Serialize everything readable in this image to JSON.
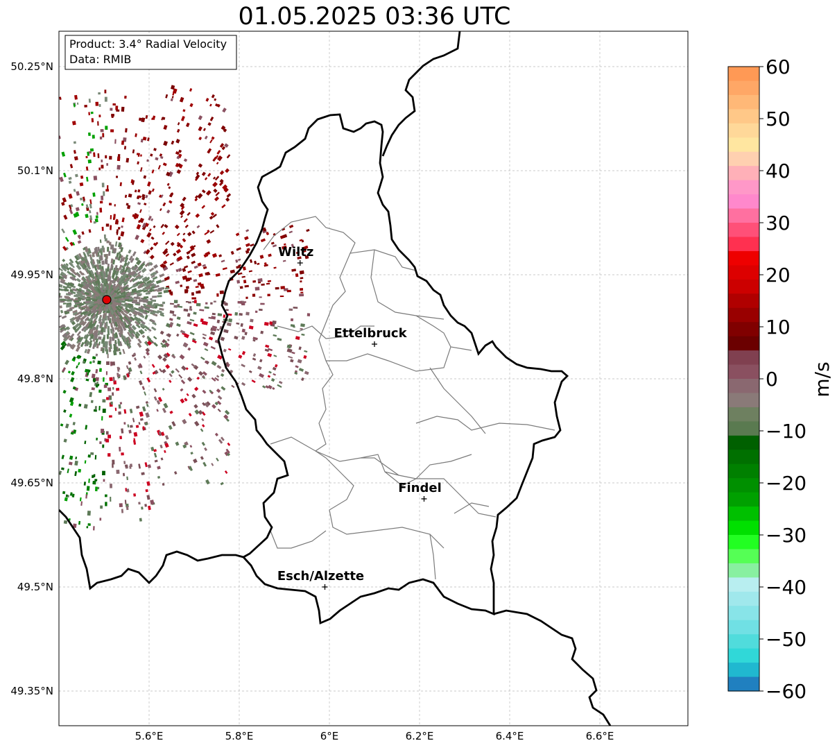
{
  "title": "01.05.2025 03:36 UTC",
  "info": {
    "product": "Product: 3.4° Radial Velocity",
    "data": "Data: RMIB"
  },
  "axes": {
    "lon_ticks": [
      "5.6°E",
      "5.8°E",
      "6°E",
      "6.2°E",
      "6.4°E",
      "6.6°E"
    ],
    "lat_ticks": [
      "50.25°N",
      "50.1°N",
      "49.95°N",
      "49.8°N",
      "49.65°N",
      "49.5°N",
      "49.35°N"
    ],
    "lon_values": [
      5.6,
      5.8,
      6.0,
      6.2,
      6.4,
      6.6
    ],
    "lat_values": [
      50.25,
      50.1,
      49.95,
      49.8,
      49.65,
      49.5,
      49.35
    ],
    "xlim": [
      5.4,
      6.8
    ],
    "ylim": [
      49.3,
      50.3
    ],
    "grid": true
  },
  "cities": [
    {
      "name": "Wiltz",
      "lon": 5.935,
      "lat": 49.967
    },
    {
      "name": "Ettelbruck",
      "lon": 6.1,
      "lat": 49.85
    },
    {
      "name": "Findel",
      "lon": 6.21,
      "lat": 49.627
    },
    {
      "name": "Esch/Alzette",
      "lon": 5.99,
      "lat": 49.5
    }
  ],
  "radar": {
    "lon": 5.506,
    "lat": 49.914,
    "color": "#e00000"
  },
  "colorbar": {
    "label": "m/s",
    "ticks": [
      "60",
      "50",
      "40",
      "30",
      "20",
      "10",
      "0",
      "−10",
      "−20",
      "−30",
      "−40",
      "−50",
      "−60"
    ],
    "tick_values": [
      60,
      50,
      40,
      30,
      20,
      10,
      0,
      -10,
      -20,
      -30,
      -40,
      -50,
      -60
    ],
    "range": [
      -60,
      60
    ],
    "colors_top_to_bottom": [
      "#ff9955",
      "#ffa766",
      "#ffb877",
      "#ffc888",
      "#ffd899",
      "#ffe6a0",
      "#ffd0b0",
      "#ffb0b8",
      "#ff98c8",
      "#ff88cc",
      "#ff70a0",
      "#ff5078",
      "#ff3050",
      "#ee0000",
      "#dd0000",
      "#cc0000",
      "#b00000",
      "#990000",
      "#800000",
      "#6b0000",
      "#804050",
      "#8a5060",
      "#8a6870",
      "#8a7a78",
      "#6e8060",
      "#5a7a50",
      "#006000",
      "#007000",
      "#008000",
      "#009000",
      "#00a000",
      "#00c000",
      "#00e000",
      "#22ff22",
      "#55ff55",
      "#88f0a0",
      "#b8eef0",
      "#a0e8ec",
      "#88e4e8",
      "#70e0e4",
      "#50dcdc",
      "#30d8d8",
      "#20b8d0",
      "#2080c0"
    ]
  }
}
